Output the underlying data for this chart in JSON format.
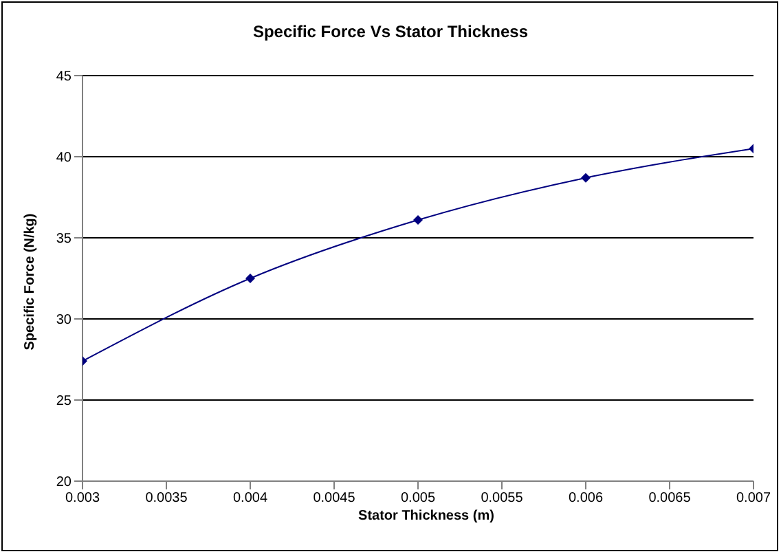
{
  "chart_data": {
    "type": "line",
    "title": "Specific Force Vs Stator Thickness",
    "xlabel": "Stator Thickness (m)",
    "ylabel": "Specific Force (N/kg)",
    "x": [
      0.003,
      0.004,
      0.005,
      0.006,
      0.007
    ],
    "series": [
      {
        "color": "#000080",
        "values": [
          27.4,
          32.5,
          36.1,
          38.7,
          40.5
        ]
      }
    ],
    "xlim": [
      0.003,
      0.007
    ],
    "xticks": [
      0.003,
      0.0035,
      0.004,
      0.0045,
      0.005,
      0.0055,
      0.006,
      0.0065,
      0.007
    ],
    "ylim": [
      20,
      45
    ],
    "yticks": [
      20,
      25,
      30,
      35,
      40,
      45
    ],
    "grid": "y",
    "marker": "diamond",
    "line_style": "solid"
  }
}
